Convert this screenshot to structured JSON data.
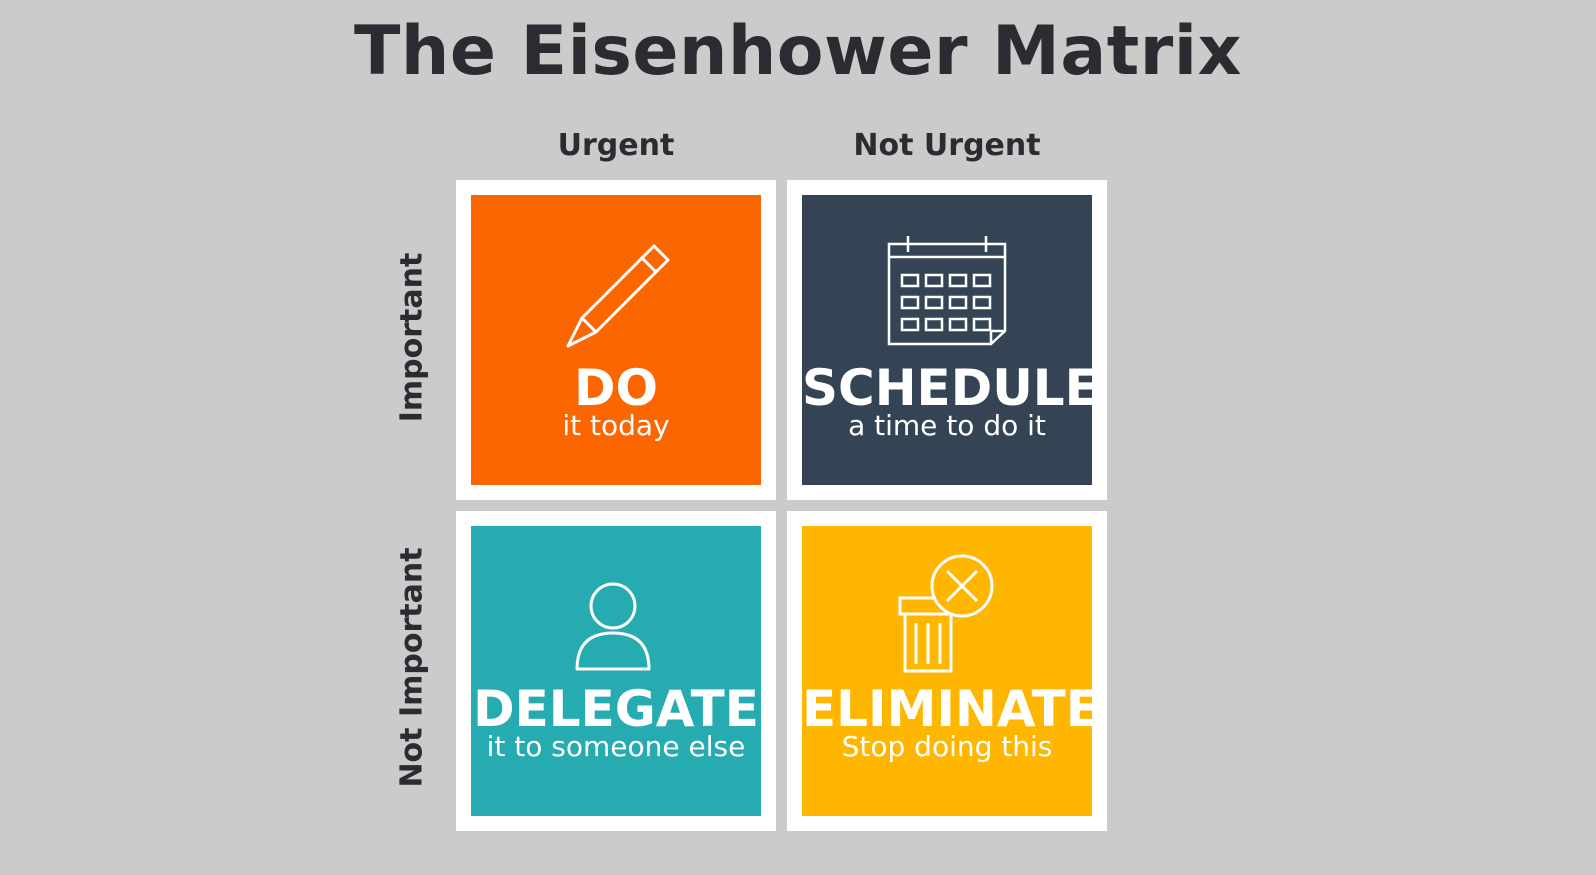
{
  "title": "The Eisenhower Matrix",
  "columns": [
    "Urgent",
    "Not Urgent"
  ],
  "rows": [
    "Important",
    "Not Important"
  ],
  "quadrants": [
    {
      "label": "DO",
      "sub": "it today",
      "icon": "pencil-icon",
      "color": "#fc6600"
    },
    {
      "label": "SCHEDULE",
      "sub": "a time to do it",
      "icon": "calendar-icon",
      "color": "#344454"
    },
    {
      "label": "DELEGATE",
      "sub": "it to someone else",
      "icon": "person-icon",
      "color": "#25abb0"
    },
    {
      "label": "ELIMINATE",
      "sub": "Stop doing this",
      "icon": "trash-delete-icon",
      "color": "#ffb600"
    }
  ]
}
